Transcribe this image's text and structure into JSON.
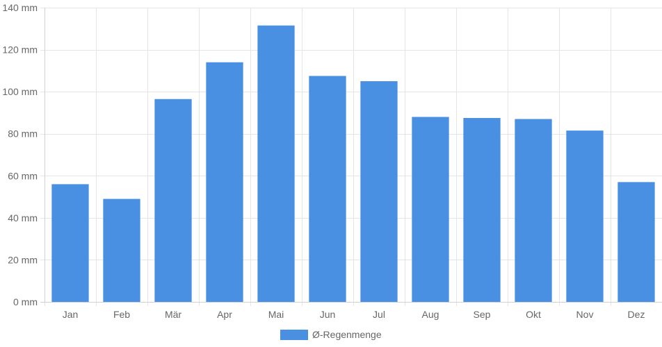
{
  "chart_data": {
    "type": "bar",
    "categories": [
      "Jan",
      "Feb",
      "Mär",
      "Apr",
      "Mai",
      "Jun",
      "Jul",
      "Aug",
      "Sep",
      "Okt",
      "Nov",
      "Dez"
    ],
    "series": [
      {
        "name": "Ø-Regenmenge",
        "color": "#4a90e2",
        "values": [
          56,
          49,
          96.5,
          114,
          131.5,
          107.5,
          105,
          88,
          87.5,
          87,
          81.5,
          57
        ]
      }
    ],
    "y_unit": "mm",
    "y_ticks": [
      0,
      20,
      40,
      60,
      80,
      100,
      120,
      140
    ],
    "y_tick_labels": [
      "0 mm",
      "20 mm",
      "40 mm",
      "60 mm",
      "80 mm",
      "100 mm",
      "120 mm",
      "140 mm"
    ],
    "ylim": [
      0,
      140
    ],
    "grid": true,
    "legend_position": "bottom-center",
    "grid_color": "#e5e5e5",
    "axis_color": "#d0d0d0"
  }
}
